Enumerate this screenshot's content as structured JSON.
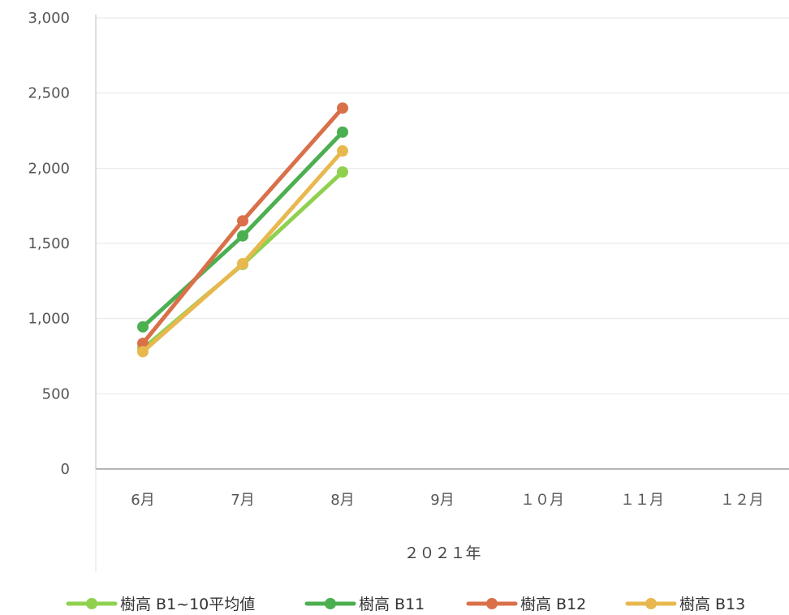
{
  "chart_data": {
    "type": "line",
    "categories": [
      "6月",
      "7月",
      "8月",
      "9月",
      "１０月",
      "１１月",
      "１２月"
    ],
    "xlabel": "２０２１年",
    "ylabel": "",
    "title": "",
    "ylim": [
      0,
      3000
    ],
    "yticks": [
      0,
      500,
      1000,
      1500,
      2000,
      2500,
      3000
    ],
    "ytick_labels": [
      "0",
      "500",
      "1,000",
      "1,500",
      "2,000",
      "2,500",
      "3,000"
    ],
    "grid": true,
    "legend_position": "bottom",
    "series": [
      {
        "name": "樹高 B1~10平均値",
        "color": "#8fd14f",
        "values": [
          800,
          1360,
          1975,
          null,
          null,
          null,
          null
        ]
      },
      {
        "name": "樹高 B11",
        "color": "#4caf50",
        "values": [
          945,
          1550,
          2240,
          null,
          null,
          null,
          null
        ]
      },
      {
        "name": "樹高 B12",
        "color": "#d9704a",
        "values": [
          835,
          1650,
          2400,
          null,
          null,
          null,
          null
        ]
      },
      {
        "name": "樹高 B13",
        "color": "#e8b84f",
        "values": [
          780,
          1365,
          2115,
          null,
          null,
          null,
          null
        ]
      }
    ]
  }
}
